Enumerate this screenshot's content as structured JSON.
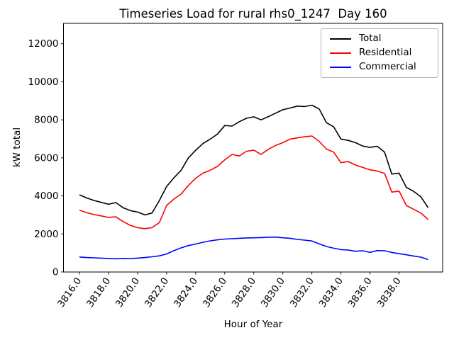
{
  "chart_data": {
    "type": "line",
    "title": "Timeseries Load for rural rhs0_1247  Day 160",
    "xlabel": "Hour of Year",
    "ylabel": "kW total",
    "legend_position": "upper right",
    "grid": false,
    "xlim": [
      3814.9,
      3841.0
    ],
    "ylim": [
      0,
      13070
    ],
    "xtick_values": [
      3816,
      3818,
      3820,
      3822,
      3824,
      3826,
      3828,
      3830,
      3832,
      3834,
      3836,
      3838
    ],
    "xtick_labels": [
      "3816.0",
      "3818.0",
      "3820.0",
      "3822.0",
      "3824.0",
      "3826.0",
      "3828.0",
      "3830.0",
      "3832.0",
      "3834.0",
      "3836.0",
      "3838.0"
    ],
    "ytick_values": [
      0,
      2000,
      4000,
      6000,
      8000,
      10000,
      12000
    ],
    "ytick_labels": [
      "0",
      "2000",
      "4000",
      "6000",
      "8000",
      "10000",
      "12000"
    ],
    "x": [
      3816.0,
      3816.5,
      3817.0,
      3817.5,
      3818.0,
      3818.5,
      3819.0,
      3819.5,
      3820.0,
      3820.5,
      3821.0,
      3821.5,
      3822.0,
      3822.5,
      3823.0,
      3823.5,
      3824.0,
      3824.5,
      3825.0,
      3825.5,
      3826.0,
      3826.5,
      3827.0,
      3827.5,
      3828.0,
      3828.5,
      3829.0,
      3829.5,
      3830.0,
      3830.5,
      3831.0,
      3831.5,
      3832.0,
      3832.5,
      3833.0,
      3833.5,
      3834.0,
      3834.5,
      3835.0,
      3835.5,
      3836.0,
      3836.5,
      3837.0,
      3837.5,
      3838.0,
      3838.5,
      3839.0,
      3839.5,
      3840.0
    ],
    "series": [
      {
        "name": "Total",
        "color": "#000000",
        "values": [
          4060,
          3890,
          3760,
          3660,
          3560,
          3650,
          3380,
          3230,
          3150,
          3000,
          3100,
          3760,
          4500,
          4950,
          5350,
          6000,
          6400,
          6750,
          6985,
          7250,
          7700,
          7670,
          7900,
          8080,
          8160,
          8000,
          8170,
          8350,
          8530,
          8620,
          8720,
          8700,
          8770,
          8570,
          7850,
          7630,
          6990,
          6920,
          6800,
          6620,
          6550,
          6610,
          6300,
          5150,
          5200,
          4450,
          4240,
          3950,
          3390
        ]
      },
      {
        "name": "Residential",
        "color": "#ff0000",
        "values": [
          3250,
          3120,
          3020,
          2950,
          2870,
          2900,
          2650,
          2450,
          2330,
          2280,
          2330,
          2600,
          3500,
          3830,
          4100,
          4550,
          4930,
          5200,
          5350,
          5550,
          5900,
          6180,
          6100,
          6350,
          6400,
          6180,
          6450,
          6650,
          6800,
          6985,
          7050,
          7110,
          7150,
          6870,
          6460,
          6300,
          5744,
          5807,
          5621,
          5496,
          5372,
          5311,
          5187,
          4200,
          4250,
          3500,
          3300,
          3100,
          2760
        ]
      },
      {
        "name": "Commercial",
        "color": "#0000ff",
        "values": [
          790,
          760,
          745,
          730,
          710,
          695,
          715,
          705,
          730,
          760,
          800,
          850,
          950,
          1120,
          1270,
          1390,
          1470,
          1560,
          1640,
          1690,
          1730,
          1750,
          1772,
          1790,
          1800,
          1810,
          1830,
          1835,
          1800,
          1772,
          1712,
          1675,
          1630,
          1480,
          1340,
          1251,
          1177,
          1154,
          1091,
          1117,
          1028,
          1128,
          1117,
          1028,
          965,
          905,
          841,
          782,
          655
        ]
      }
    ],
    "axis_color": "#000000",
    "background_color": "#ffffff"
  },
  "legend": {
    "items": [
      {
        "label": "Total"
      },
      {
        "label": "Residential"
      },
      {
        "label": "Commercial"
      }
    ]
  }
}
